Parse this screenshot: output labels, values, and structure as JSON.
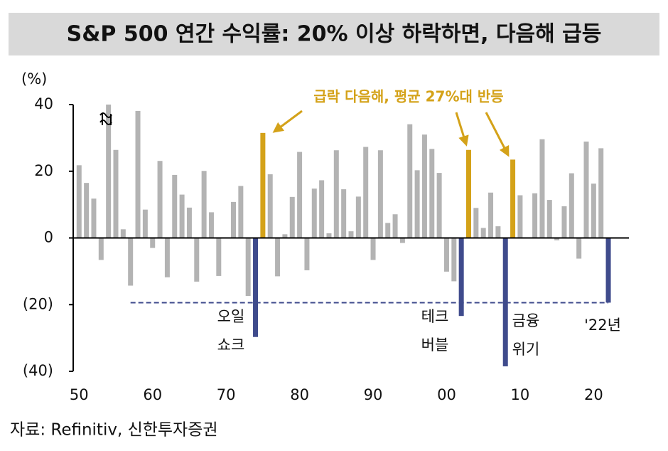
{
  "chart_data": {
    "type": "bar",
    "title": "S&P 500 연간 수익률: 20% 이상 하락하면, 다음해 급등",
    "y_unit": "(%)",
    "source": "자료: Refinitiv, 신한투자증권",
    "x": [
      1950,
      1951,
      1952,
      1953,
      1954,
      1955,
      1956,
      1957,
      1958,
      1959,
      1960,
      1961,
      1962,
      1963,
      1964,
      1965,
      1966,
      1967,
      1968,
      1969,
      1970,
      1971,
      1972,
      1973,
      1974,
      1975,
      1976,
      1977,
      1978,
      1979,
      1980,
      1981,
      1982,
      1983,
      1984,
      1985,
      1986,
      1987,
      1988,
      1989,
      1990,
      1991,
      1992,
      1993,
      1994,
      1995,
      1996,
      1997,
      1998,
      1999,
      2000,
      2001,
      2002,
      2003,
      2004,
      2005,
      2006,
      2007,
      2008,
      2009,
      2010,
      2011,
      2012,
      2013,
      2014,
      2015,
      2016,
      2017,
      2018,
      2019,
      2020,
      2021,
      2022
    ],
    "values": [
      21.8,
      16.5,
      11.8,
      -6.6,
      40,
      26.4,
      2.6,
      -14.3,
      38.1,
      8.5,
      -3.0,
      23.1,
      -11.8,
      18.9,
      13.0,
      9.1,
      -13.1,
      20.1,
      7.7,
      -11.4,
      0.1,
      10.8,
      15.6,
      -17.4,
      -29.7,
      31.5,
      19.1,
      -11.5,
      1.1,
      12.3,
      25.8,
      -9.7,
      14.8,
      17.3,
      1.4,
      26.3,
      14.6,
      2.0,
      12.4,
      27.3,
      -6.6,
      26.3,
      4.5,
      7.1,
      -1.5,
      34.1,
      20.3,
      31.0,
      26.7,
      19.5,
      -10.1,
      -13.0,
      -23.4,
      26.4,
      9.0,
      3.0,
      13.6,
      3.5,
      -38.5,
      23.5,
      12.8,
      0.0,
      13.4,
      29.6,
      11.4,
      -0.7,
      9.5,
      19.4,
      -6.2,
      28.9,
      16.3,
      26.9,
      -19.4
    ],
    "colors": [
      "#b3b3b3",
      "#b3b3b3",
      "#b3b3b3",
      "#b3b3b3",
      "#b3b3b3",
      "#b3b3b3",
      "#b3b3b3",
      "#b3b3b3",
      "#b3b3b3",
      "#b3b3b3",
      "#b3b3b3",
      "#b3b3b3",
      "#b3b3b3",
      "#b3b3b3",
      "#b3b3b3",
      "#b3b3b3",
      "#b3b3b3",
      "#b3b3b3",
      "#b3b3b3",
      "#b3b3b3",
      "#b3b3b3",
      "#b3b3b3",
      "#b3b3b3",
      "#b3b3b3",
      "#3f4b8c",
      "#d4a219",
      "#b3b3b3",
      "#b3b3b3",
      "#b3b3b3",
      "#b3b3b3",
      "#b3b3b3",
      "#b3b3b3",
      "#b3b3b3",
      "#b3b3b3",
      "#b3b3b3",
      "#b3b3b3",
      "#b3b3b3",
      "#b3b3b3",
      "#b3b3b3",
      "#b3b3b3",
      "#b3b3b3",
      "#b3b3b3",
      "#b3b3b3",
      "#b3b3b3",
      "#b3b3b3",
      "#b3b3b3",
      "#b3b3b3",
      "#b3b3b3",
      "#b3b3b3",
      "#b3b3b3",
      "#b3b3b3",
      "#b3b3b3",
      "#3f4b8c",
      "#d4a219",
      "#b3b3b3",
      "#b3b3b3",
      "#b3b3b3",
      "#b3b3b3",
      "#3f4b8c",
      "#d4a219",
      "#b3b3b3",
      "#b3b3b3",
      "#b3b3b3",
      "#b3b3b3",
      "#b3b3b3",
      "#b3b3b3",
      "#b3b3b3",
      "#b3b3b3",
      "#b3b3b3",
      "#b3b3b3",
      "#b3b3b3",
      "#b3b3b3",
      "#3f4b8c"
    ],
    "xlim": [
      1949.2,
      2024.8
    ],
    "xticks": [
      {
        "value": 1950,
        "label": "50"
      },
      {
        "value": 1960,
        "label": "60"
      },
      {
        "value": 1970,
        "label": "70"
      },
      {
        "value": 1980,
        "label": "80"
      },
      {
        "value": 1990,
        "label": "90"
      },
      {
        "value": 2000,
        "label": "00"
      },
      {
        "value": 2010,
        "label": "10"
      },
      {
        "value": 2020,
        "label": "20"
      }
    ],
    "ylim": [
      -40,
      40
    ],
    "yticks": [
      40,
      20,
      0,
      {
        "value": -20,
        "label": "(20)"
      },
      {
        "value": -40,
        "label": "(40)"
      }
    ],
    "annotations": [
      {
        "text": [
          "급락 다음해, 평균 27%대 반등"
        ]
      },
      {
        "text": [
          "오일",
          "쇼크"
        ]
      },
      {
        "text": [
          "테크",
          "버블"
        ]
      },
      {
        "text": [
          "금융",
          "위기"
        ]
      },
      {
        "text": [
          "'22년"
        ]
      }
    ]
  }
}
